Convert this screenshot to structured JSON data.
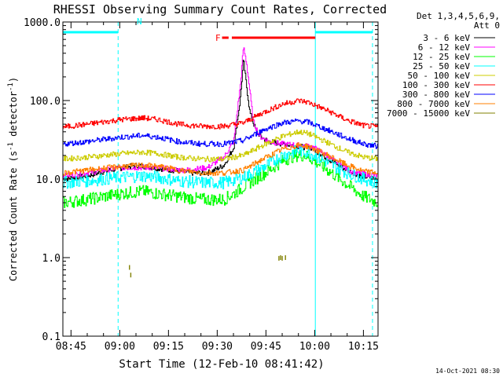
{
  "chart_data": {
    "type": "line",
    "title": "RHESSI Observing Summary Count Rates, Corrected",
    "xlabel": "Start Time (12-Feb-10 08:41:42)",
    "ylabel_main": "Corrected Count Rate (s",
    "ylabel_sup": "-1",
    "ylabel_tail": " detector",
    "ylabel_end": ")",
    "yscale": "log",
    "ylim": [
      0.1,
      1000.0
    ],
    "xlim_minutes": [
      522.5,
      619.5
    ],
    "x_ticks": [
      {
        "label": "08:45",
        "minute": 525
      },
      {
        "label": "09:00",
        "minute": 540
      },
      {
        "label": "09:15",
        "minute": 555
      },
      {
        "label": "09:30",
        "minute": 570
      },
      {
        "label": "09:45",
        "minute": 585
      },
      {
        "label": "10:00",
        "minute": 600
      },
      {
        "label": "10:15",
        "minute": 615
      }
    ],
    "y_ticks": [
      {
        "label": "0.1",
        "value": 0.1
      },
      {
        "label": "1.0",
        "value": 1.0
      },
      {
        "label": "10.0",
        "value": 10.0
      },
      {
        "label": "100.0",
        "value": 100.0
      },
      {
        "label": "1000.0",
        "value": 1000.0
      }
    ],
    "detectors_line1": "Det 1,3,4,5,6,9,",
    "detectors_line2": "Att 0",
    "legend_position": "right",
    "series": [
      {
        "name": "3 - 6 keV",
        "color": "#000000",
        "x": [
          522.5,
          530,
          537,
          545,
          550,
          556,
          562,
          567,
          569,
          572,
          575,
          577,
          578,
          580,
          582,
          584,
          586,
          590,
          595,
          599,
          601,
          605,
          610,
          614,
          619.5
        ],
        "y": [
          10,
          11,
          13,
          15,
          14,
          13,
          12,
          12,
          13,
          15,
          25,
          100,
          330,
          70,
          40,
          33,
          30,
          28,
          26,
          25,
          22,
          17,
          13,
          11,
          10
        ]
      },
      {
        "name": "6 - 12 keV",
        "color": "#ff00ff",
        "x": [
          522.5,
          530,
          540,
          550,
          560,
          567,
          572,
          575,
          577,
          578,
          579,
          581,
          583,
          586,
          590,
          595,
          599,
          602,
          607,
          612,
          619.5
        ],
        "y": [
          11,
          12,
          14,
          14,
          13,
          14,
          19,
          30,
          150,
          480,
          300,
          55,
          35,
          30,
          28,
          27,
          26,
          22,
          16,
          12,
          11
        ]
      },
      {
        "name": "12 - 25 keV",
        "color": "#00ff00",
        "x": [
          522.5,
          530,
          540,
          547,
          552,
          558,
          565,
          572,
          575,
          580,
          586,
          590,
          594,
          597,
          599,
          604,
          610,
          615,
          619.5
        ],
        "y": [
          5,
          5.5,
          6.5,
          7,
          6.5,
          6,
          5.5,
          5.5,
          6.5,
          9,
          13,
          17,
          20,
          20,
          18,
          13,
          8.5,
          6,
          5
        ]
      },
      {
        "name": "25 - 50 keV",
        "color": "#00ffff",
        "x": [
          522.5,
          530,
          540,
          547,
          552,
          558,
          565,
          572,
          578,
          584,
          590,
          595,
          598,
          604,
          610,
          615,
          619.5
        ],
        "y": [
          9,
          9.5,
          10.5,
          11,
          10.5,
          9.5,
          9,
          9,
          10.5,
          14,
          20,
          23,
          22,
          16,
          12,
          10,
          9
        ]
      },
      {
        "name": "50 - 100 keV",
        "color": "#cccc00",
        "x": [
          522.5,
          530,
          540,
          547,
          552,
          558,
          565,
          572,
          578,
          584,
          590,
          595,
          598,
          604,
          610,
          615,
          619.5
        ],
        "y": [
          18,
          19,
          21,
          22,
          21,
          19,
          18,
          18,
          20,
          27,
          35,
          40,
          38,
          29,
          22,
          19,
          18
        ]
      },
      {
        "name": "100 - 300 keV",
        "color": "#ff0000",
        "x": [
          522.5,
          530,
          540,
          547,
          552,
          558,
          565,
          572,
          578,
          584,
          590,
          595,
          598,
          604,
          610,
          615,
          619.5
        ],
        "y": [
          46,
          50,
          57,
          60,
          57,
          50,
          47,
          47,
          52,
          70,
          90,
          100,
          95,
          74,
          56,
          48,
          46
        ]
      },
      {
        "name": "300 - 800 keV",
        "color": "#0000ff",
        "x": [
          522.5,
          530,
          540,
          547,
          552,
          558,
          565,
          572,
          578,
          584,
          590,
          595,
          598,
          604,
          610,
          615,
          619.5
        ],
        "y": [
          28,
          30,
          34,
          36,
          34,
          30,
          28,
          28,
          31,
          42,
          52,
          55,
          53,
          42,
          33,
          28,
          26
        ]
      },
      {
        "name": "800 - 7000 keV",
        "color": "#ff8000",
        "x": [
          522.5,
          530,
          540,
          547,
          552,
          558,
          565,
          572,
          578,
          584,
          590,
          595,
          598,
          604,
          610,
          615,
          619.5
        ],
        "y": [
          12,
          13,
          14.5,
          15,
          14.5,
          13,
          12,
          12,
          13,
          18,
          24,
          27,
          26,
          20,
          15,
          12.5,
          12
        ]
      },
      {
        "name": "7000 - 15000 keV",
        "color": "#808000",
        "x": [
          543,
          543.4,
          589,
          589.5,
          590,
          591
        ],
        "y": [
          0.75,
          0.6,
          0.98,
          1.0,
          0.98,
          1.0
        ]
      }
    ]
  },
  "annotations": {
    "night_label": "N",
    "flare_label": "F",
    "night_color": "#00ffff",
    "flare_color": "#ff0000",
    "night_bars_minutes": [
      [
        522.5,
        539.5
      ],
      [
        600.2,
        617.8
      ]
    ],
    "night_dashed_minutes": [
      539.5,
      617.8
    ],
    "night_solid_minutes": [
      522.5,
      600.2
    ],
    "flare_bars_minutes": [
      [
        571.5,
        573.5
      ],
      [
        574.5,
        600.2
      ]
    ]
  },
  "footer": {
    "date": "14-Oct-2021 08:30"
  }
}
